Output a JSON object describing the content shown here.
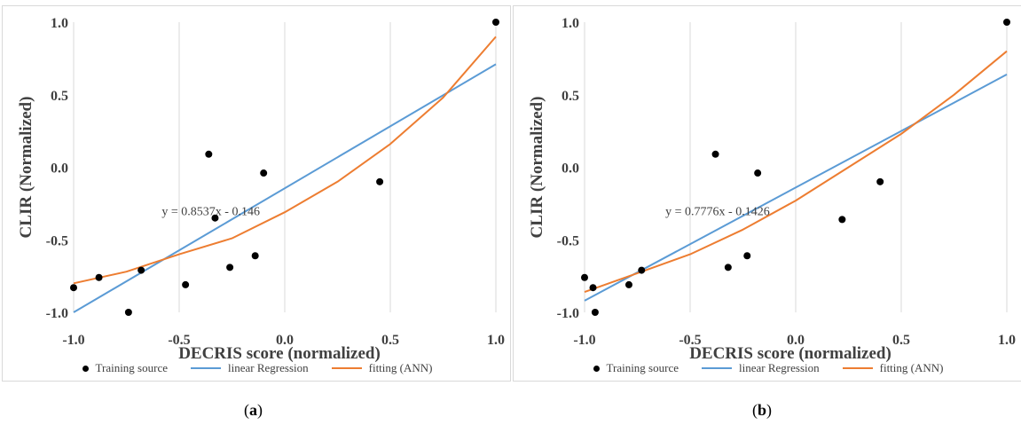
{
  "chart_data": [
    {
      "type": "scatter",
      "panel": "a",
      "xlabel": "DECRIS score (normalized)",
      "ylabel": "CLIR (Normalized)",
      "xlim": [
        -1.0,
        1.0
      ],
      "ylim": [
        -1.0,
        1.0
      ],
      "x_ticks": [
        "-1.0",
        "-0.5",
        "0.0",
        "0.5",
        "1.0"
      ],
      "y_ticks": [
        "1.0",
        "0.5",
        "0.0",
        "-0.5",
        "-1.0"
      ],
      "grid": "vertical",
      "equation": "y = 0.8537x - 0.146",
      "series": [
        {
          "name": "Training source",
          "kind": "scatter",
          "color": "#000000",
          "points": [
            [
              -1.0,
              -0.83
            ],
            [
              -0.88,
              -0.76
            ],
            [
              -0.74,
              -1.0
            ],
            [
              -0.68,
              -0.71
            ],
            [
              -0.47,
              -0.81
            ],
            [
              -0.36,
              0.09
            ],
            [
              -0.33,
              -0.35
            ],
            [
              -0.26,
              -0.69
            ],
            [
              -0.14,
              -0.61
            ],
            [
              -0.1,
              -0.04
            ],
            [
              0.45,
              -0.1
            ],
            [
              1.0,
              1.0
            ]
          ]
        },
        {
          "name": "linear Regression",
          "kind": "line",
          "color": "#5b9bd5",
          "points": [
            [
              -1.0,
              -1.0
            ],
            [
              1.0,
              0.71
            ]
          ]
        },
        {
          "name": "fitting (ANN)",
          "kind": "curve",
          "color": "#ed7d31",
          "points": [
            [
              -1.0,
              -0.8
            ],
            [
              -0.75,
              -0.72
            ],
            [
              -0.5,
              -0.6
            ],
            [
              -0.25,
              -0.49
            ],
            [
              0.0,
              -0.31
            ],
            [
              0.25,
              -0.1
            ],
            [
              0.5,
              0.16
            ],
            [
              0.75,
              0.48
            ],
            [
              1.0,
              0.9
            ]
          ]
        }
      ]
    },
    {
      "type": "scatter",
      "panel": "b",
      "xlabel": "DECRIS score (normalized)",
      "ylabel": "CLIR (Normalized)",
      "xlim": [
        -1.0,
        1.0
      ],
      "ylim": [
        -1.0,
        1.0
      ],
      "x_ticks": [
        "-1.0",
        "-0.5",
        "0.0",
        "0.5",
        "1.0"
      ],
      "y_ticks": [
        "1.0",
        "0.5",
        "0.0",
        "-0.5",
        "-1.0"
      ],
      "grid": "vertical",
      "equation": "y = 0.7776x - 0.1426",
      "series": [
        {
          "name": "Training source",
          "kind": "scatter",
          "color": "#000000",
          "points": [
            [
              -1.0,
              -0.76
            ],
            [
              -0.96,
              -0.83
            ],
            [
              -0.95,
              -1.0
            ],
            [
              -0.73,
              -0.71
            ],
            [
              -0.79,
              -0.81
            ],
            [
              -0.38,
              0.09
            ],
            [
              -0.32,
              -0.69
            ],
            [
              -0.23,
              -0.61
            ],
            [
              -0.18,
              -0.04
            ],
            [
              0.22,
              -0.36
            ],
            [
              0.4,
              -0.1
            ],
            [
              1.0,
              1.0
            ]
          ]
        },
        {
          "name": "linear Regression",
          "kind": "line",
          "color": "#5b9bd5",
          "points": [
            [
              -1.0,
              -0.92
            ],
            [
              1.0,
              0.64
            ]
          ]
        },
        {
          "name": "fitting (ANN)",
          "kind": "curve",
          "color": "#ed7d31",
          "points": [
            [
              -1.0,
              -0.86
            ],
            [
              -0.75,
              -0.73
            ],
            [
              -0.5,
              -0.6
            ],
            [
              -0.25,
              -0.43
            ],
            [
              0.0,
              -0.23
            ],
            [
              0.25,
              0.0
            ],
            [
              0.5,
              0.23
            ],
            [
              0.75,
              0.5
            ],
            [
              1.0,
              0.8
            ]
          ]
        }
      ]
    }
  ],
  "legend": {
    "training": "Training source",
    "linear": "linear Regression",
    "fitting": "fitting (ANN)"
  },
  "captions": {
    "a_open": "(",
    "a_letter": "a",
    "a_close": ")",
    "b_open": "(",
    "b_letter": "b",
    "b_close": ")"
  }
}
